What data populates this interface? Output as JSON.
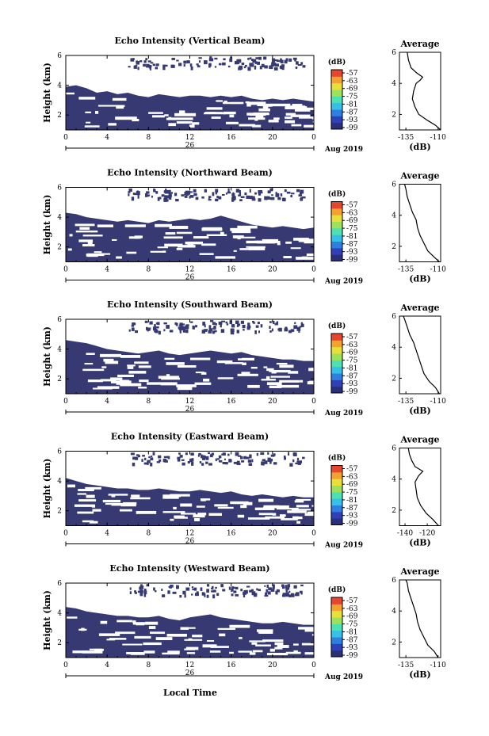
{
  "footer": {
    "xlabel": "Local Time"
  },
  "colors": {
    "fill": "#373a72",
    "colorbar": [
      "#2a2f7a",
      "#3040b8",
      "#2f7fe0",
      "#35c0e8",
      "#4de0b0",
      "#9ee05a",
      "#e8e03a",
      "#f3a12f",
      "#e8452e"
    ]
  },
  "chart_data": [
    {
      "type": "heatmap",
      "title": "Echo Intensity (Vertical Beam)",
      "ylabel": "Height (km)",
      "ylim": [
        1,
        6
      ],
      "yticks": [
        "2",
        "4",
        "6"
      ],
      "xlim": [
        0,
        24
      ],
      "xticks": [
        "0",
        "4",
        "8",
        "12",
        "16",
        "20",
        "0"
      ],
      "date_label": "26",
      "month_label": "Aug 2019",
      "colorbar": {
        "label": "(dB)",
        "ticks": [
          "-57",
          "-63",
          "-69",
          "-75",
          "-81",
          "-87",
          "-93",
          "-99"
        ]
      },
      "echo_top_km": [
        3.9,
        4.0,
        3.8,
        3.5,
        3.6,
        3.4,
        3.5,
        3.3,
        3.2,
        3.4,
        3.3,
        3.2,
        3.3,
        3.3,
        3.2,
        3.3,
        3.2,
        3.3,
        3.1,
        3.0,
        3.1,
        3.0,
        3.1,
        3.0,
        2.9
      ],
      "profile": {
        "title": "Average",
        "xlabel": "(dB)",
        "xticks": [
          "-135",
          "-110"
        ],
        "xlim": [
          -140,
          -108
        ],
        "ylim": [
          1,
          6
        ],
        "height_km": [
          1.0,
          1.3,
          1.6,
          2.0,
          2.5,
          3.0,
          3.5,
          4.0,
          4.2,
          4.4,
          4.7,
          5.0,
          5.5,
          6.0
        ],
        "db": [
          -108,
          -112,
          -118,
          -125,
          -128,
          -130,
          -129,
          -127,
          -124,
          -122,
          -127,
          -131,
          -133,
          -134
        ]
      }
    },
    {
      "type": "heatmap",
      "title": "Echo Intensity (Northward Beam)",
      "ylabel": "Height (km)",
      "ylim": [
        1,
        6
      ],
      "yticks": [
        "2",
        "4",
        "6"
      ],
      "xlim": [
        0,
        24
      ],
      "xticks": [
        "0",
        "4",
        "8",
        "12",
        "16",
        "20",
        "0"
      ],
      "date_label": "26",
      "month_label": "Aug 2019",
      "colorbar": {
        "label": "(dB)",
        "ticks": [
          "-57",
          "-63",
          "-69",
          "-75",
          "-81",
          "-87",
          "-93",
          "-99"
        ]
      },
      "echo_top_km": [
        4.3,
        4.2,
        4.0,
        3.9,
        3.8,
        3.7,
        3.8,
        3.7,
        3.6,
        3.8,
        3.7,
        3.8,
        3.9,
        3.8,
        3.9,
        4.1,
        3.9,
        3.7,
        3.5,
        3.4,
        3.3,
        3.4,
        3.3,
        3.2,
        3.3
      ],
      "profile": {
        "title": "Average",
        "xlabel": "(dB)",
        "xticks": [
          "-135",
          "-110"
        ],
        "xlim": [
          -140,
          -108
        ],
        "ylim": [
          1,
          6
        ],
        "height_km": [
          1.0,
          1.3,
          1.7,
          2.2,
          2.7,
          3.2,
          3.7,
          4.2,
          4.7,
          5.2,
          5.7,
          6.0
        ],
        "db": [
          -109,
          -113,
          -118,
          -121,
          -124,
          -126,
          -127,
          -130,
          -132,
          -134,
          -135,
          -136
        ]
      }
    },
    {
      "type": "heatmap",
      "title": "Echo Intensity (Southward Beam)",
      "ylabel": "Height (km)",
      "ylim": [
        1,
        6
      ],
      "yticks": [
        "2",
        "4",
        "6"
      ],
      "xlim": [
        0,
        24
      ],
      "xticks": [
        "0",
        "4",
        "8",
        "12",
        "16",
        "20",
        "0"
      ],
      "date_label": "26",
      "month_label": "Aug 2019",
      "colorbar": {
        "label": "(dB)",
        "ticks": [
          "-57",
          "-63",
          "-69",
          "-75",
          "-81",
          "-87",
          "-93",
          "-99"
        ]
      },
      "echo_top_km": [
        4.6,
        4.5,
        4.4,
        4.2,
        4.0,
        3.9,
        3.8,
        3.7,
        3.8,
        3.9,
        3.7,
        3.6,
        3.7,
        3.8,
        3.9,
        3.8,
        3.7,
        3.8,
        3.6,
        3.5,
        3.4,
        3.3,
        3.3,
        3.2,
        3.2
      ],
      "profile": {
        "title": "Average",
        "xlabel": "(dB)",
        "xticks": [
          "-135",
          "-110"
        ],
        "xlim": [
          -140,
          -108
        ],
        "ylim": [
          1,
          6
        ],
        "height_km": [
          1.0,
          1.4,
          1.8,
          2.3,
          2.8,
          3.3,
          3.8,
          4.3,
          4.8,
          5.3,
          5.8,
          6.0
        ],
        "db": [
          -109,
          -112,
          -117,
          -121,
          -123,
          -125,
          -127,
          -129,
          -132,
          -134,
          -136,
          -137
        ]
      }
    },
    {
      "type": "heatmap",
      "title": "Echo Intensity (Eastward Beam)",
      "ylabel": "Height (km)",
      "ylim": [
        1,
        6
      ],
      "yticks": [
        "2",
        "4",
        "6"
      ],
      "xlim": [
        0,
        24
      ],
      "xticks": [
        "0",
        "4",
        "8",
        "12",
        "16",
        "20",
        "0"
      ],
      "date_label": "26",
      "month_label": "Aug 2019",
      "colorbar": {
        "label": "(dB)",
        "ticks": [
          "-57",
          "-63",
          "-69",
          "-75",
          "-81",
          "-87",
          "-93",
          "-99"
        ]
      },
      "echo_top_km": [
        4.2,
        4.0,
        3.8,
        3.7,
        3.6,
        3.5,
        3.5,
        3.4,
        3.4,
        3.5,
        3.4,
        3.3,
        3.3,
        3.4,
        3.3,
        3.2,
        3.3,
        3.1,
        3.0,
        3.1,
        3.0,
        2.9,
        3.0,
        2.9,
        2.9
      ],
      "profile": {
        "title": "Average",
        "xlabel": "(dB)",
        "xticks": [
          "-140",
          "-120"
        ],
        "xlim": [
          -145,
          -108
        ],
        "ylim": [
          1,
          6
        ],
        "height_km": [
          1.0,
          1.4,
          1.8,
          2.3,
          2.8,
          3.3,
          3.8,
          4.2,
          4.5,
          4.8,
          5.2,
          5.6,
          6.0
        ],
        "db": [
          -110,
          -115,
          -121,
          -126,
          -129,
          -130,
          -131,
          -128,
          -124,
          -131,
          -134,
          -136,
          -137
        ]
      }
    },
    {
      "type": "heatmap",
      "title": "Echo Intensity (Westward Beam)",
      "ylabel": "Height (km)",
      "ylim": [
        1,
        6
      ],
      "yticks": [
        "2",
        "4",
        "6"
      ],
      "xlim": [
        0,
        24
      ],
      "xticks": [
        "0",
        "4",
        "8",
        "12",
        "16",
        "20",
        "0"
      ],
      "date_label": "26",
      "month_label": "Aug 2019",
      "colorbar": {
        "label": "(dB)",
        "ticks": [
          "-57",
          "-63",
          "-69",
          "-75",
          "-81",
          "-87",
          "-93",
          "-99"
        ]
      },
      "echo_top_km": [
        4.4,
        4.3,
        4.1,
        4.0,
        3.9,
        3.8,
        3.8,
        3.7,
        3.7,
        3.8,
        3.6,
        3.5,
        3.7,
        3.8,
        3.9,
        3.7,
        3.6,
        3.5,
        3.4,
        3.3,
        3.3,
        3.4,
        3.3,
        3.2,
        3.2
      ],
      "profile": {
        "title": "Average",
        "xlabel": "(dB)",
        "xticks": [
          "-135",
          "-110"
        ],
        "xlim": [
          -140,
          -108
        ],
        "ylim": [
          1,
          6
        ],
        "height_km": [
          1.0,
          1.4,
          1.8,
          2.3,
          2.8,
          3.3,
          3.8,
          4.3,
          4.8,
          5.3,
          5.8,
          6.0
        ],
        "db": [
          -110,
          -113,
          -118,
          -121,
          -124,
          -126,
          -127,
          -129,
          -131,
          -133,
          -134,
          -135
        ]
      }
    }
  ]
}
